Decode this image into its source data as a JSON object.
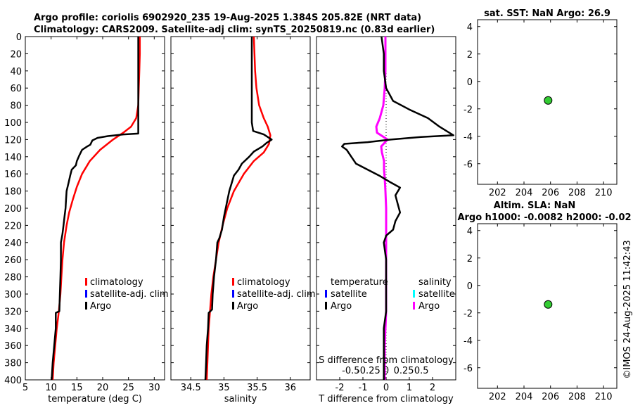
{
  "title_line1": "Argo profile: coriolis 6902920_235 19-Aug-2025 1.384S 205.82E (NRT data)",
  "title_line2": "Climatology: CARS2009. Satellite-adj clim: synTS_20250819.nc (0.83d earlier)",
  "sst_title": "sat. SST: NaN Argo: 26.9",
  "sla_title1": "Altim. SLA: NaN",
  "sla_title2": "Argo h1000: -0.0082 h2000: -0.02",
  "watermark": "©IMOS 24-Aug-2025 11:42:43",
  "legend_temp": {
    "climatology": "climatology",
    "satellite": "satellite-adj. clim",
    "argo": "Argo"
  },
  "legend_sal": {
    "climatology": "climatology",
    "satellite": "satellite-adj. clim",
    "argo": "Argo"
  },
  "legend_diff": {
    "temperature": "temperature",
    "salinity": "salinity",
    "satellite_t": "satellite",
    "argo_t": "Argo",
    "satellite_s": "satellite",
    "argo_s": "Argo"
  },
  "colors": {
    "climatology": "#ff0000",
    "satellite": "#0000ff",
    "argo": "#000000",
    "salinity_sat": "#00ffff",
    "salinity_argo": "#ff00ff",
    "marker": "#33cc33"
  },
  "chart_data": [
    {
      "type": "line",
      "name": "temperature",
      "xlabel": "temperature (deg C)",
      "ylabel": "",
      "xlim": [
        5,
        32
      ],
      "ylim": [
        400,
        0
      ],
      "xticks": [
        5,
        10,
        15,
        20,
        25,
        30
      ],
      "yticks": [
        0,
        20,
        40,
        60,
        80,
        100,
        120,
        140,
        160,
        180,
        200,
        220,
        240,
        260,
        280,
        300,
        320,
        340,
        360,
        380,
        400
      ],
      "series": [
        {
          "name": "climatology",
          "color": "#ff0000",
          "points": [
            [
              27.2,
              0
            ],
            [
              27.2,
              20
            ],
            [
              27.1,
              40
            ],
            [
              27.0,
              60
            ],
            [
              26.9,
              80
            ],
            [
              26.5,
              95
            ],
            [
              25.5,
              105
            ],
            [
              24,
              112
            ],
            [
              22,
              120
            ],
            [
              19.5,
              132
            ],
            [
              17.5,
              145
            ],
            [
              16,
              160
            ],
            [
              15,
              175
            ],
            [
              14.2,
              190
            ],
            [
              13.5,
              205
            ],
            [
              13,
              220
            ],
            [
              12.5,
              240
            ],
            [
              12.2,
              260
            ],
            [
              12,
              280
            ],
            [
              11.8,
              300
            ],
            [
              11.5,
              320
            ],
            [
              11.1,
              340
            ],
            [
              10.8,
              360
            ],
            [
              10.5,
              380
            ],
            [
              10.3,
              400
            ]
          ]
        },
        {
          "name": "Argo",
          "color": "#000000",
          "points": [
            [
              26.9,
              0
            ],
            [
              26.9,
              20
            ],
            [
              26.9,
              40
            ],
            [
              26.9,
              60
            ],
            [
              26.9,
              80
            ],
            [
              26.9,
              100
            ],
            [
              26.9,
              113
            ],
            [
              24,
              114
            ],
            [
              21,
              116
            ],
            [
              19,
              118
            ],
            [
              18,
              121
            ],
            [
              17.6,
              126
            ],
            [
              17,
              128
            ],
            [
              16,
              132
            ],
            [
              15.5,
              138
            ],
            [
              15,
              145
            ],
            [
              14.8,
              150
            ],
            [
              14,
              155
            ],
            [
              13.7,
              162
            ],
            [
              13.4,
              170
            ],
            [
              13,
              180
            ],
            [
              12.9,
              190
            ],
            [
              12.8,
              200
            ],
            [
              12.6,
              210
            ],
            [
              12.4,
              220
            ],
            [
              12.2,
              230
            ],
            [
              11.9,
              240
            ],
            [
              11.9,
              260
            ],
            [
              11.8,
              280
            ],
            [
              11.7,
              300
            ],
            [
              11.6,
              320
            ],
            [
              10.9,
              322
            ],
            [
              10.9,
              340
            ],
            [
              10.6,
              360
            ],
            [
              10.3,
              380
            ],
            [
              10.1,
              400
            ]
          ]
        }
      ]
    },
    {
      "type": "line",
      "name": "salinity",
      "xlabel": "salinity",
      "ylabel": "",
      "xlim": [
        34.2,
        36.3
      ],
      "ylim": [
        400,
        0
      ],
      "xticks": [
        34.5,
        35,
        35.5,
        36
      ],
      "xticklabels": [
        "34.5",
        "35",
        "35.5",
        "36"
      ],
      "series": [
        {
          "name": "climatology",
          "color": "#ff0000",
          "points": [
            [
              35.45,
              0
            ],
            [
              35.46,
              20
            ],
            [
              35.47,
              40
            ],
            [
              35.49,
              60
            ],
            [
              35.53,
              80
            ],
            [
              35.6,
              95
            ],
            [
              35.66,
              105
            ],
            [
              35.7,
              115
            ],
            [
              35.68,
              125
            ],
            [
              35.6,
              135
            ],
            [
              35.45,
              145
            ],
            [
              35.3,
              160
            ],
            [
              35.15,
              180
            ],
            [
              35.05,
              200
            ],
            [
              34.98,
              220
            ],
            [
              34.92,
              240
            ],
            [
              34.88,
              260
            ],
            [
              34.84,
              280
            ],
            [
              34.81,
              300
            ],
            [
              34.79,
              320
            ],
            [
              34.77,
              340
            ],
            [
              34.76,
              360
            ],
            [
              34.75,
              380
            ],
            [
              34.74,
              400
            ]
          ]
        },
        {
          "name": "Argo",
          "color": "#000000",
          "points": [
            [
              35.42,
              0
            ],
            [
              35.42,
              20
            ],
            [
              35.42,
              40
            ],
            [
              35.42,
              60
            ],
            [
              35.42,
              80
            ],
            [
              35.42,
              100
            ],
            [
              35.44,
              110
            ],
            [
              35.6,
              114
            ],
            [
              35.72,
              120
            ],
            [
              35.64,
              124
            ],
            [
              35.58,
              128
            ],
            [
              35.45,
              134
            ],
            [
              35.38,
              140
            ],
            [
              35.27,
              148
            ],
            [
              35.22,
              155
            ],
            [
              35.15,
              162
            ],
            [
              35.12,
              170
            ],
            [
              35.08,
              180
            ],
            [
              35.04,
              195
            ],
            [
              35.0,
              210
            ],
            [
              34.97,
              225
            ],
            [
              34.93,
              235
            ],
            [
              34.9,
              240
            ],
            [
              34.88,
              260
            ],
            [
              34.85,
              280
            ],
            [
              34.83,
              300
            ],
            [
              34.82,
              318
            ],
            [
              34.77,
              322
            ],
            [
              34.76,
              340
            ],
            [
              34.74,
              360
            ],
            [
              34.73,
              380
            ],
            [
              34.72,
              400
            ]
          ]
        }
      ]
    },
    {
      "type": "line",
      "name": "difference",
      "xlabel": "T difference from climatology",
      "top_label": "S difference from climatology",
      "xlim": [
        -3,
        3
      ],
      "ylim": [
        400,
        0
      ],
      "xticks": [
        -2,
        -1,
        0,
        1,
        2
      ],
      "sxticks": [
        -0.5,
        -0.25,
        0,
        0.25,
        0.5
      ],
      "sxticklabels": [
        "-0.5",
        "-0.25",
        "0",
        "0.25",
        "0.5"
      ],
      "series": [
        {
          "name": "Argo temperature",
          "color": "#000000",
          "points": [
            [
              -0.2,
              0
            ],
            [
              -0.1,
              20
            ],
            [
              -0.1,
              40
            ],
            [
              0,
              60
            ],
            [
              0.3,
              75
            ],
            [
              1,
              85
            ],
            [
              1.8,
              95
            ],
            [
              2.3,
              105
            ],
            [
              2.9,
              115
            ],
            [
              1.5,
              117
            ],
            [
              0.2,
              120
            ],
            [
              -0.8,
              123
            ],
            [
              -1.8,
              125
            ],
            [
              -1.9,
              128
            ],
            [
              -1.7,
              132
            ],
            [
              -1.5,
              140
            ],
            [
              -1.3,
              148
            ],
            [
              -0.8,
              155
            ],
            [
              -0.3,
              162
            ],
            [
              0.2,
              170
            ],
            [
              0.6,
              176
            ],
            [
              0.4,
              185
            ],
            [
              0.5,
              195
            ],
            [
              0.6,
              205
            ],
            [
              0.4,
              215
            ],
            [
              0.3,
              225
            ],
            [
              0,
              232
            ],
            [
              -0.1,
              240
            ],
            [
              0,
              260
            ],
            [
              0,
              280
            ],
            [
              0,
              300
            ],
            [
              0,
              320
            ],
            [
              -0.1,
              340
            ],
            [
              -0.1,
              360
            ],
            [
              -0.1,
              380
            ],
            [
              -0.1,
              400
            ]
          ]
        },
        {
          "name": "Argo salinity",
          "color": "#ff00ff",
          "points": [
            [
              -0.01,
              0
            ],
            [
              -0.01,
              20
            ],
            [
              -0.01,
              40
            ],
            [
              -0.02,
              60
            ],
            [
              -0.04,
              80
            ],
            [
              -0.09,
              95
            ],
            [
              -0.14,
              105
            ],
            [
              -0.13,
              112
            ],
            [
              0.02,
              120
            ],
            [
              -0.07,
              128
            ],
            [
              -0.06,
              135
            ],
            [
              -0.03,
              145
            ],
            [
              -0.03,
              155
            ],
            [
              -0.02,
              165
            ],
            [
              -0.01,
              180
            ],
            [
              0,
              200
            ],
            [
              0,
              240
            ],
            [
              0,
              280
            ],
            [
              0,
              300
            ],
            [
              0,
              320
            ],
            [
              -0.01,
              340
            ],
            [
              -0.02,
              360
            ],
            [
              -0.02,
              380
            ],
            [
              -0.02,
              400
            ]
          ]
        }
      ]
    },
    {
      "type": "scatter",
      "name": "sst",
      "title": "sat. SST: NaN Argo: 26.9",
      "xlim": [
        200.5,
        211
      ],
      "ylim": [
        -7.5,
        4.5
      ],
      "xticks": [
        202,
        204,
        206,
        208,
        210
      ],
      "yticks": [
        -6,
        -4,
        -2,
        0,
        2,
        4
      ],
      "points": [
        [
          205.82,
          -1.384
        ]
      ]
    },
    {
      "type": "scatter",
      "name": "sla",
      "title": "Altim. SLA: NaN",
      "xlim": [
        200.5,
        211
      ],
      "ylim": [
        -7.5,
        4.5
      ],
      "xticks": [
        202,
        204,
        206,
        208,
        210
      ],
      "yticks": [
        -6,
        -4,
        -2,
        0,
        2,
        4
      ],
      "points": [
        [
          205.82,
          -1.384
        ]
      ]
    }
  ]
}
